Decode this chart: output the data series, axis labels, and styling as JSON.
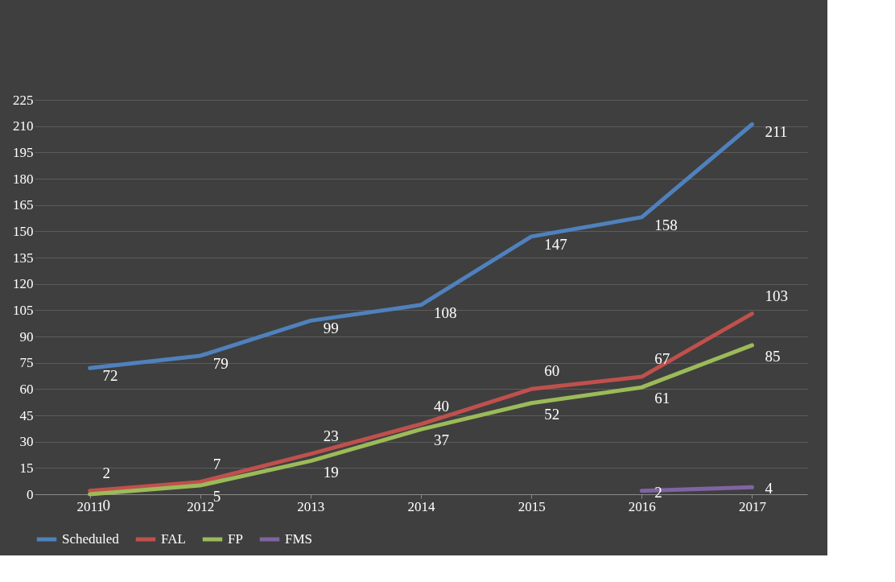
{
  "chart_data": {
    "type": "line",
    "categories": [
      "2011",
      "2012",
      "2013",
      "2014",
      "2015",
      "2016",
      "2017"
    ],
    "series": [
      {
        "name": "Scheduled",
        "color": "#4f81bd",
        "values": [
          72,
          79,
          99,
          108,
          147,
          158,
          211
        ]
      },
      {
        "name": "FAL",
        "color": "#c0504d",
        "values": [
          2,
          7,
          23,
          40,
          60,
          67,
          103
        ]
      },
      {
        "name": "FP",
        "color": "#9bbb59",
        "values": [
          0,
          5,
          19,
          37,
          52,
          61,
          85
        ]
      },
      {
        "name": "FMS",
        "color": "#8064a2",
        "values": [
          null,
          null,
          null,
          null,
          null,
          2,
          4
        ]
      }
    ],
    "ylim": [
      0,
      225
    ],
    "yticks": [
      0,
      15,
      30,
      45,
      60,
      75,
      90,
      105,
      120,
      135,
      150,
      165,
      180,
      195,
      210,
      225
    ],
    "grid": "y",
    "legend": "bottom",
    "data_labels": true,
    "marker": "none",
    "line_style": "solid"
  }
}
